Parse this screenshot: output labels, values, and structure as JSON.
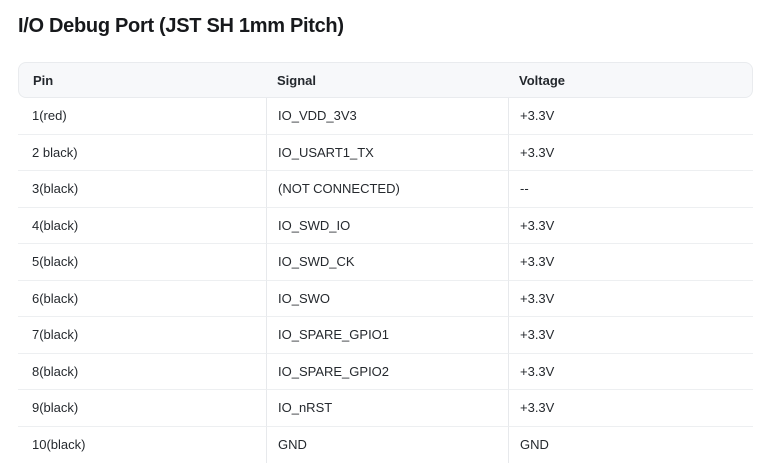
{
  "page": {
    "title": "I/O Debug Port (JST SH 1mm Pitch)"
  },
  "table": {
    "columns": [
      {
        "key": "pin",
        "label": "Pin"
      },
      {
        "key": "signal",
        "label": "Signal"
      },
      {
        "key": "voltage",
        "label": "Voltage"
      }
    ],
    "rows": [
      {
        "pin": "1(red)",
        "signal": "IO_VDD_3V3",
        "voltage": "+3.3V"
      },
      {
        "pin": "2 black)",
        "signal": "IO_USART1_TX",
        "voltage": "+3.3V"
      },
      {
        "pin": "3(black)",
        "signal": "(NOT CONNECTED)",
        "voltage": "--"
      },
      {
        "pin": "4(black)",
        "signal": "IO_SWD_IO",
        "voltage": "+3.3V"
      },
      {
        "pin": "5(black)",
        "signal": "IO_SWD_CK",
        "voltage": "+3.3V"
      },
      {
        "pin": "6(black)",
        "signal": "IO_SWO",
        "voltage": "+3.3V"
      },
      {
        "pin": "7(black)",
        "signal": "IO_SPARE_GPIO1",
        "voltage": "+3.3V"
      },
      {
        "pin": "8(black)",
        "signal": "IO_SPARE_GPIO2",
        "voltage": "+3.3V"
      },
      {
        "pin": "9(black)",
        "signal": "IO_nRST",
        "voltage": "+3.3V"
      },
      {
        "pin": "10(black)",
        "signal": "GND",
        "voltage": "GND"
      }
    ]
  },
  "colors": {
    "header_bg": "#f7f8fa",
    "header_border": "#e9ebee",
    "row_divider": "#edeff1",
    "column_divider": "#e7e9ec",
    "title_text": "#17191c",
    "body_text": "#25292e"
  }
}
